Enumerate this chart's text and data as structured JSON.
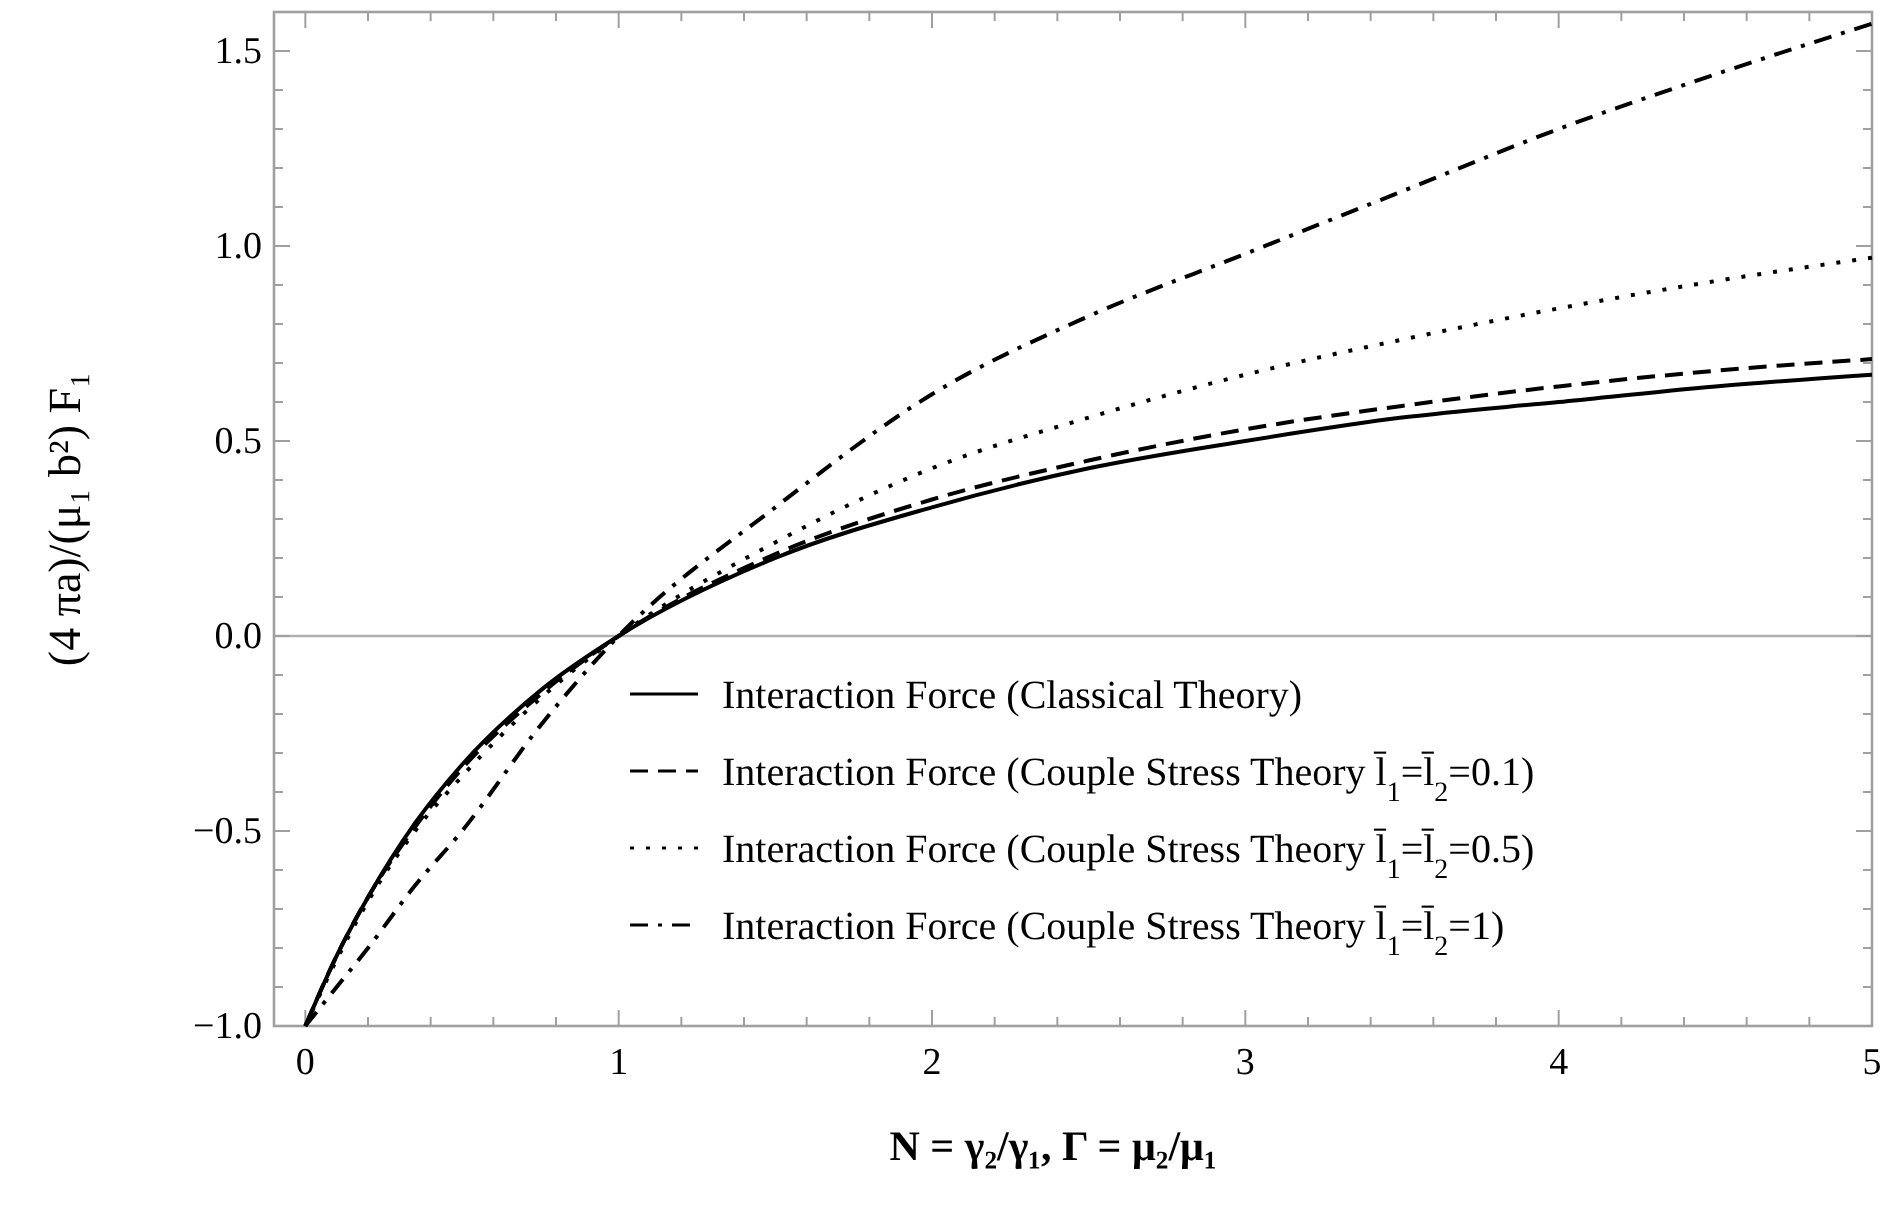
{
  "chart_data": {
    "type": "line",
    "xlabel": "N = γ₂/γ₁, Γ = μ₂/μ₁",
    "ylabel": "(4 πa)/(μ₁ b²) F₁",
    "x": [
      0,
      0.1,
      0.2,
      0.35,
      0.5,
      0.75,
      1,
      1.5,
      2,
      2.5,
      3,
      3.5,
      4,
      4.5,
      5
    ],
    "series": [
      {
        "name": "Interaction Force (Classical Theory)",
        "color": "#000000",
        "line_style": "solid",
        "values": [
          -1,
          -0.82,
          -0.67,
          -0.48,
          -0.33,
          -0.14,
          0,
          0.2,
          0.33,
          0.43,
          0.5,
          0.56,
          0.6,
          0.64,
          0.67
        ]
      },
      {
        "name": "Interaction Force (Couple Stress Theory l̄$_{1}$=l̄$_{2}$=0.1)",
        "color": "#000000",
        "line_style": "dashed",
        "values": [
          -1,
          -0.82,
          -0.67,
          -0.49,
          -0.34,
          -0.15,
          0,
          0.21,
          0.35,
          0.45,
          0.53,
          0.59,
          0.64,
          0.68,
          0.71
        ]
      },
      {
        "name": "Interaction Force (Couple Stress Theory l̄$_{1}$=l̄$_{2}$=0.5)",
        "color": "#000000",
        "line_style": "dotted",
        "values": [
          -1,
          -0.83,
          -0.68,
          -0.5,
          -0.36,
          -0.16,
          0,
          0.24,
          0.43,
          0.56,
          0.67,
          0.76,
          0.84,
          0.91,
          0.97
        ]
      },
      {
        "name": "Interaction Force (Couple Stress Theory l̄$_{1}$=l̄$_{2}$=1)",
        "color": "#000000",
        "line_style": "dashdot",
        "values": [
          -1,
          -0.9,
          -0.8,
          -0.64,
          -0.5,
          -0.23,
          0,
          0.33,
          0.62,
          0.82,
          0.98,
          1.14,
          1.3,
          1.44,
          1.57
        ]
      }
    ],
    "xlim": [
      -0.1,
      5
    ],
    "ylim": [
      -1,
      1.6
    ],
    "xticks": [
      0,
      {
        "value": 0.2,
        "label": null
      },
      {
        "value": 0.4,
        "label": null
      },
      {
        "value": 0.6,
        "label": null
      },
      {
        "value": 0.8,
        "label": null
      },
      1,
      {
        "value": 1.2,
        "label": null
      },
      {
        "value": 1.4,
        "label": null
      },
      {
        "value": 1.6,
        "label": null
      },
      {
        "value": 1.8,
        "label": null
      },
      2,
      {
        "value": 2.2,
        "label": null
      },
      {
        "value": 2.4,
        "label": null
      },
      {
        "value": 2.6,
        "label": null
      },
      {
        "value": 2.8,
        "label": null
      },
      3,
      {
        "value": 3.2,
        "label": null
      },
      {
        "value": 3.4,
        "label": null
      },
      {
        "value": 3.6,
        "label": null
      },
      {
        "value": 3.8,
        "label": null
      },
      4,
      {
        "value": 4.2,
        "label": null
      },
      {
        "value": 4.4,
        "label": null
      },
      {
        "value": 4.6,
        "label": null
      },
      {
        "value": 4.8,
        "label": null
      },
      5
    ],
    "yticks": [
      {
        "value": -1,
        "label": "−1.0"
      },
      {
        "value": -0.9,
        "label": null
      },
      {
        "value": -0.8,
        "label": null
      },
      {
        "value": -0.7,
        "label": null
      },
      {
        "value": -0.6,
        "label": null
      },
      {
        "value": -0.5,
        "label": "−0.5"
      },
      {
        "value": -0.4,
        "label": null
      },
      {
        "value": -0.3,
        "label": null
      },
      {
        "value": -0.2,
        "label": null
      },
      {
        "value": -0.1,
        "label": null
      },
      {
        "value": 0,
        "label": "0.0"
      },
      {
        "value": 0.1,
        "label": null
      },
      {
        "value": 0.2,
        "label": null
      },
      {
        "value": 0.3,
        "label": null
      },
      {
        "value": 0.4,
        "label": null
      },
      {
        "value": 0.5,
        "label": "0.5"
      },
      {
        "value": 0.6,
        "label": null
      },
      {
        "value": 0.7,
        "label": null
      },
      {
        "value": 0.8,
        "label": null
      },
      {
        "value": 0.9,
        "label": null
      },
      {
        "value": 1,
        "label": "1.0"
      },
      {
        "value": 1.1,
        "label": null
      },
      {
        "value": 1.2,
        "label": null
      },
      {
        "value": 1.3,
        "label": null
      },
      {
        "value": 1.4,
        "label": null
      },
      {
        "value": 1.5,
        "label": "1.5"
      }
    ],
    "ref_lines": [
      {
        "axis": "y",
        "value": 0,
        "color": "#b0b0b0"
      }
    ],
    "legend": "bottom right",
    "grid": false
  }
}
